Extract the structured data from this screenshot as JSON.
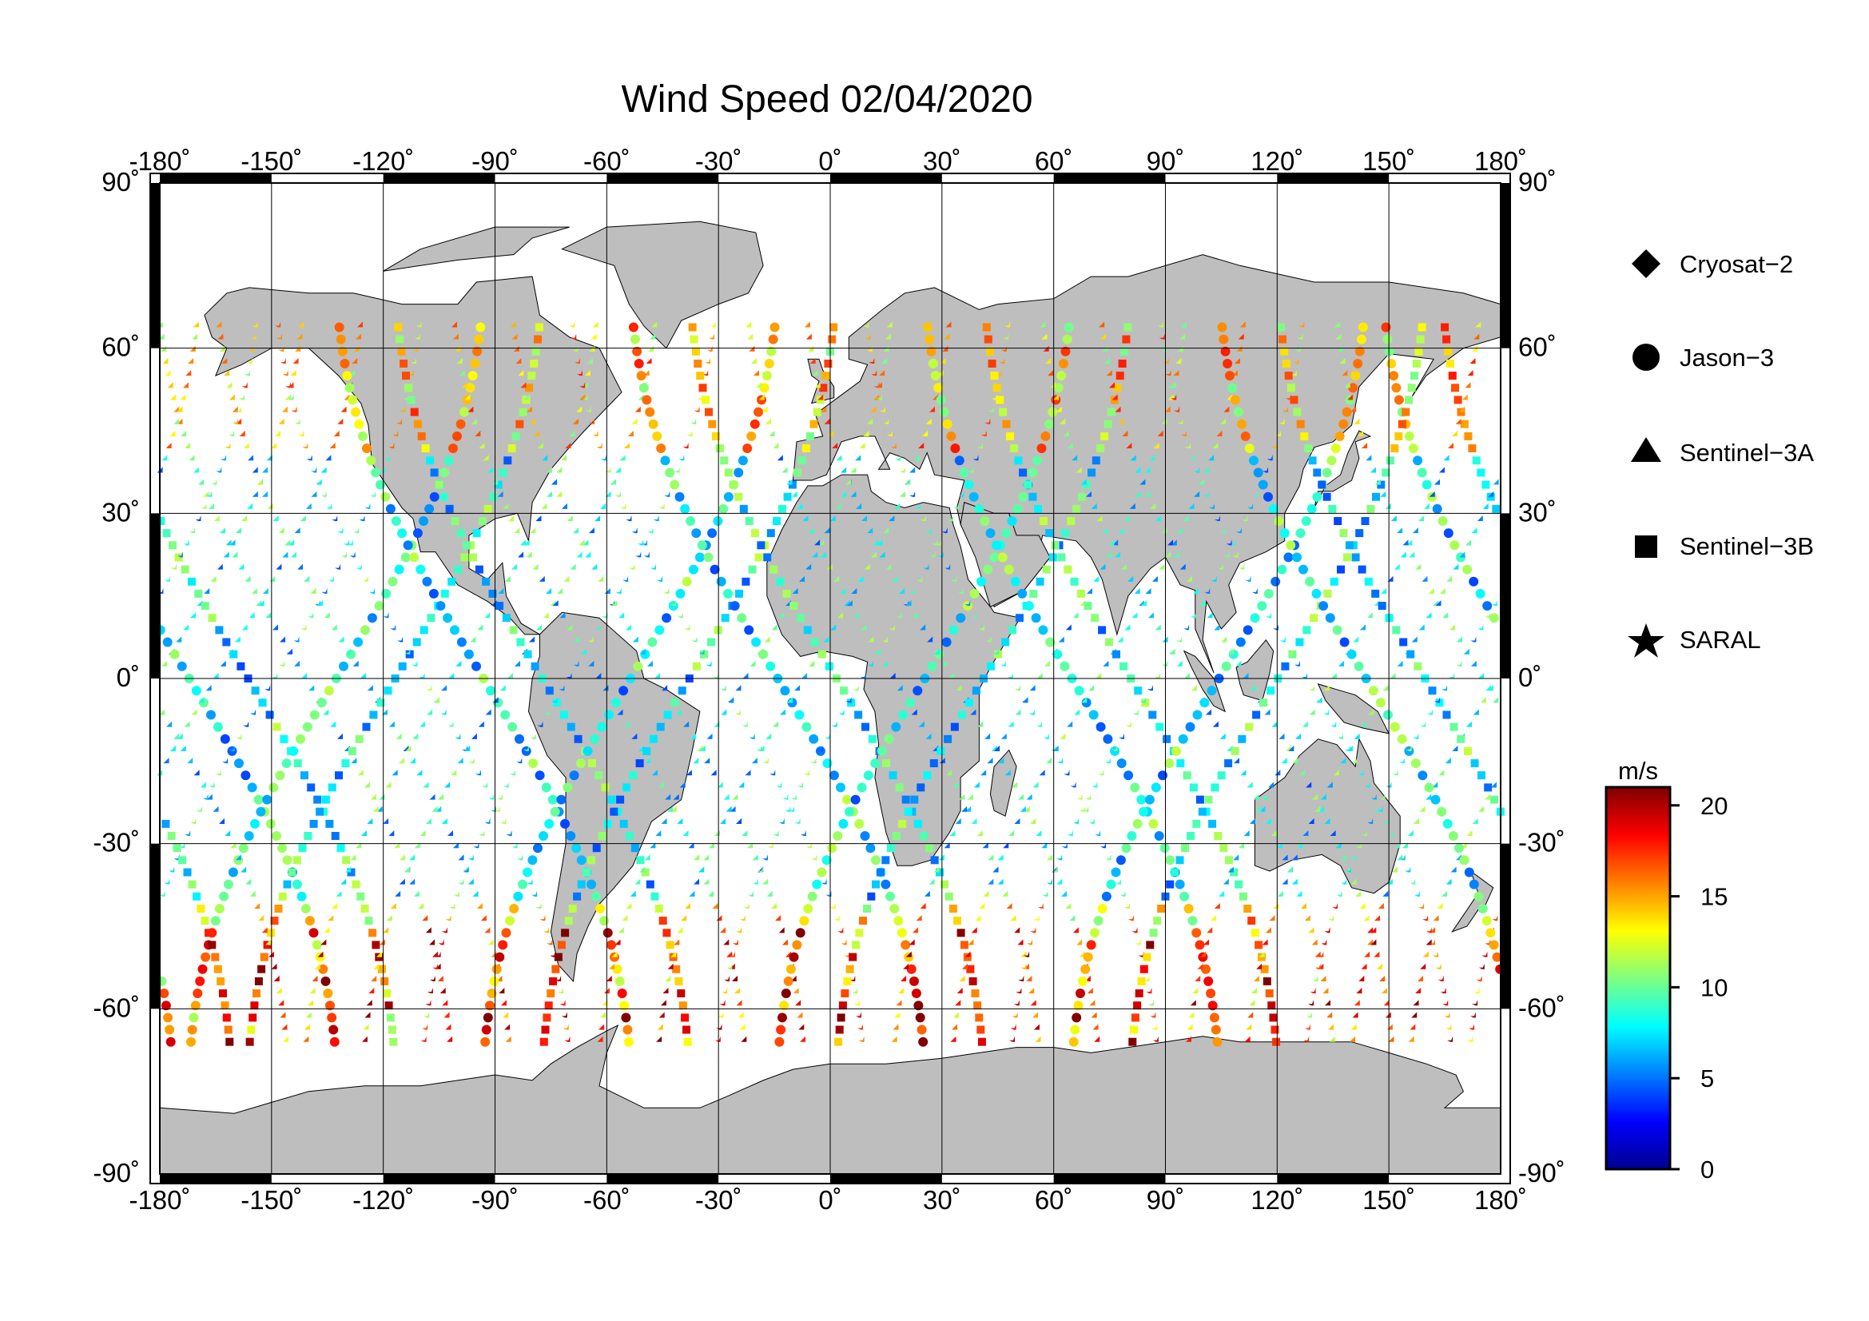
{
  "title": "Wind Speed 02/04/2020",
  "map": {
    "lon_ticks": [
      "-180˚",
      "-150˚",
      "-120˚",
      "-90˚",
      "-60˚",
      "-30˚",
      "0˚",
      "30˚",
      "60˚",
      "90˚",
      "120˚",
      "150˚",
      "180˚"
    ],
    "lat_ticks": [
      "90˚",
      "60˚",
      "30˚",
      "0˚",
      "-30˚",
      "-60˚",
      "-90˚"
    ],
    "lon_range": [
      -180,
      180
    ],
    "lat_range": [
      -90,
      90
    ],
    "projection": "equirectangular",
    "grid": true,
    "land_color": "#bebebe",
    "ocean_color": "#ffffff"
  },
  "legend": {
    "placement": "right",
    "items": [
      {
        "label": "Cryosat−2",
        "symbol": "diamond"
      },
      {
        "label": "Jason−3",
        "symbol": "circle"
      },
      {
        "label": "Sentinel−3A",
        "symbol": "triangle"
      },
      {
        "label": "Sentinel−3B",
        "symbol": "square"
      },
      {
        "label": "SARAL",
        "symbol": "star"
      }
    ]
  },
  "colorbar": {
    "unit": "m/s",
    "range": [
      0,
      21
    ],
    "ticks": [
      "20",
      "15",
      "10",
      "5",
      "0"
    ],
    "colormap": "jet"
  }
}
